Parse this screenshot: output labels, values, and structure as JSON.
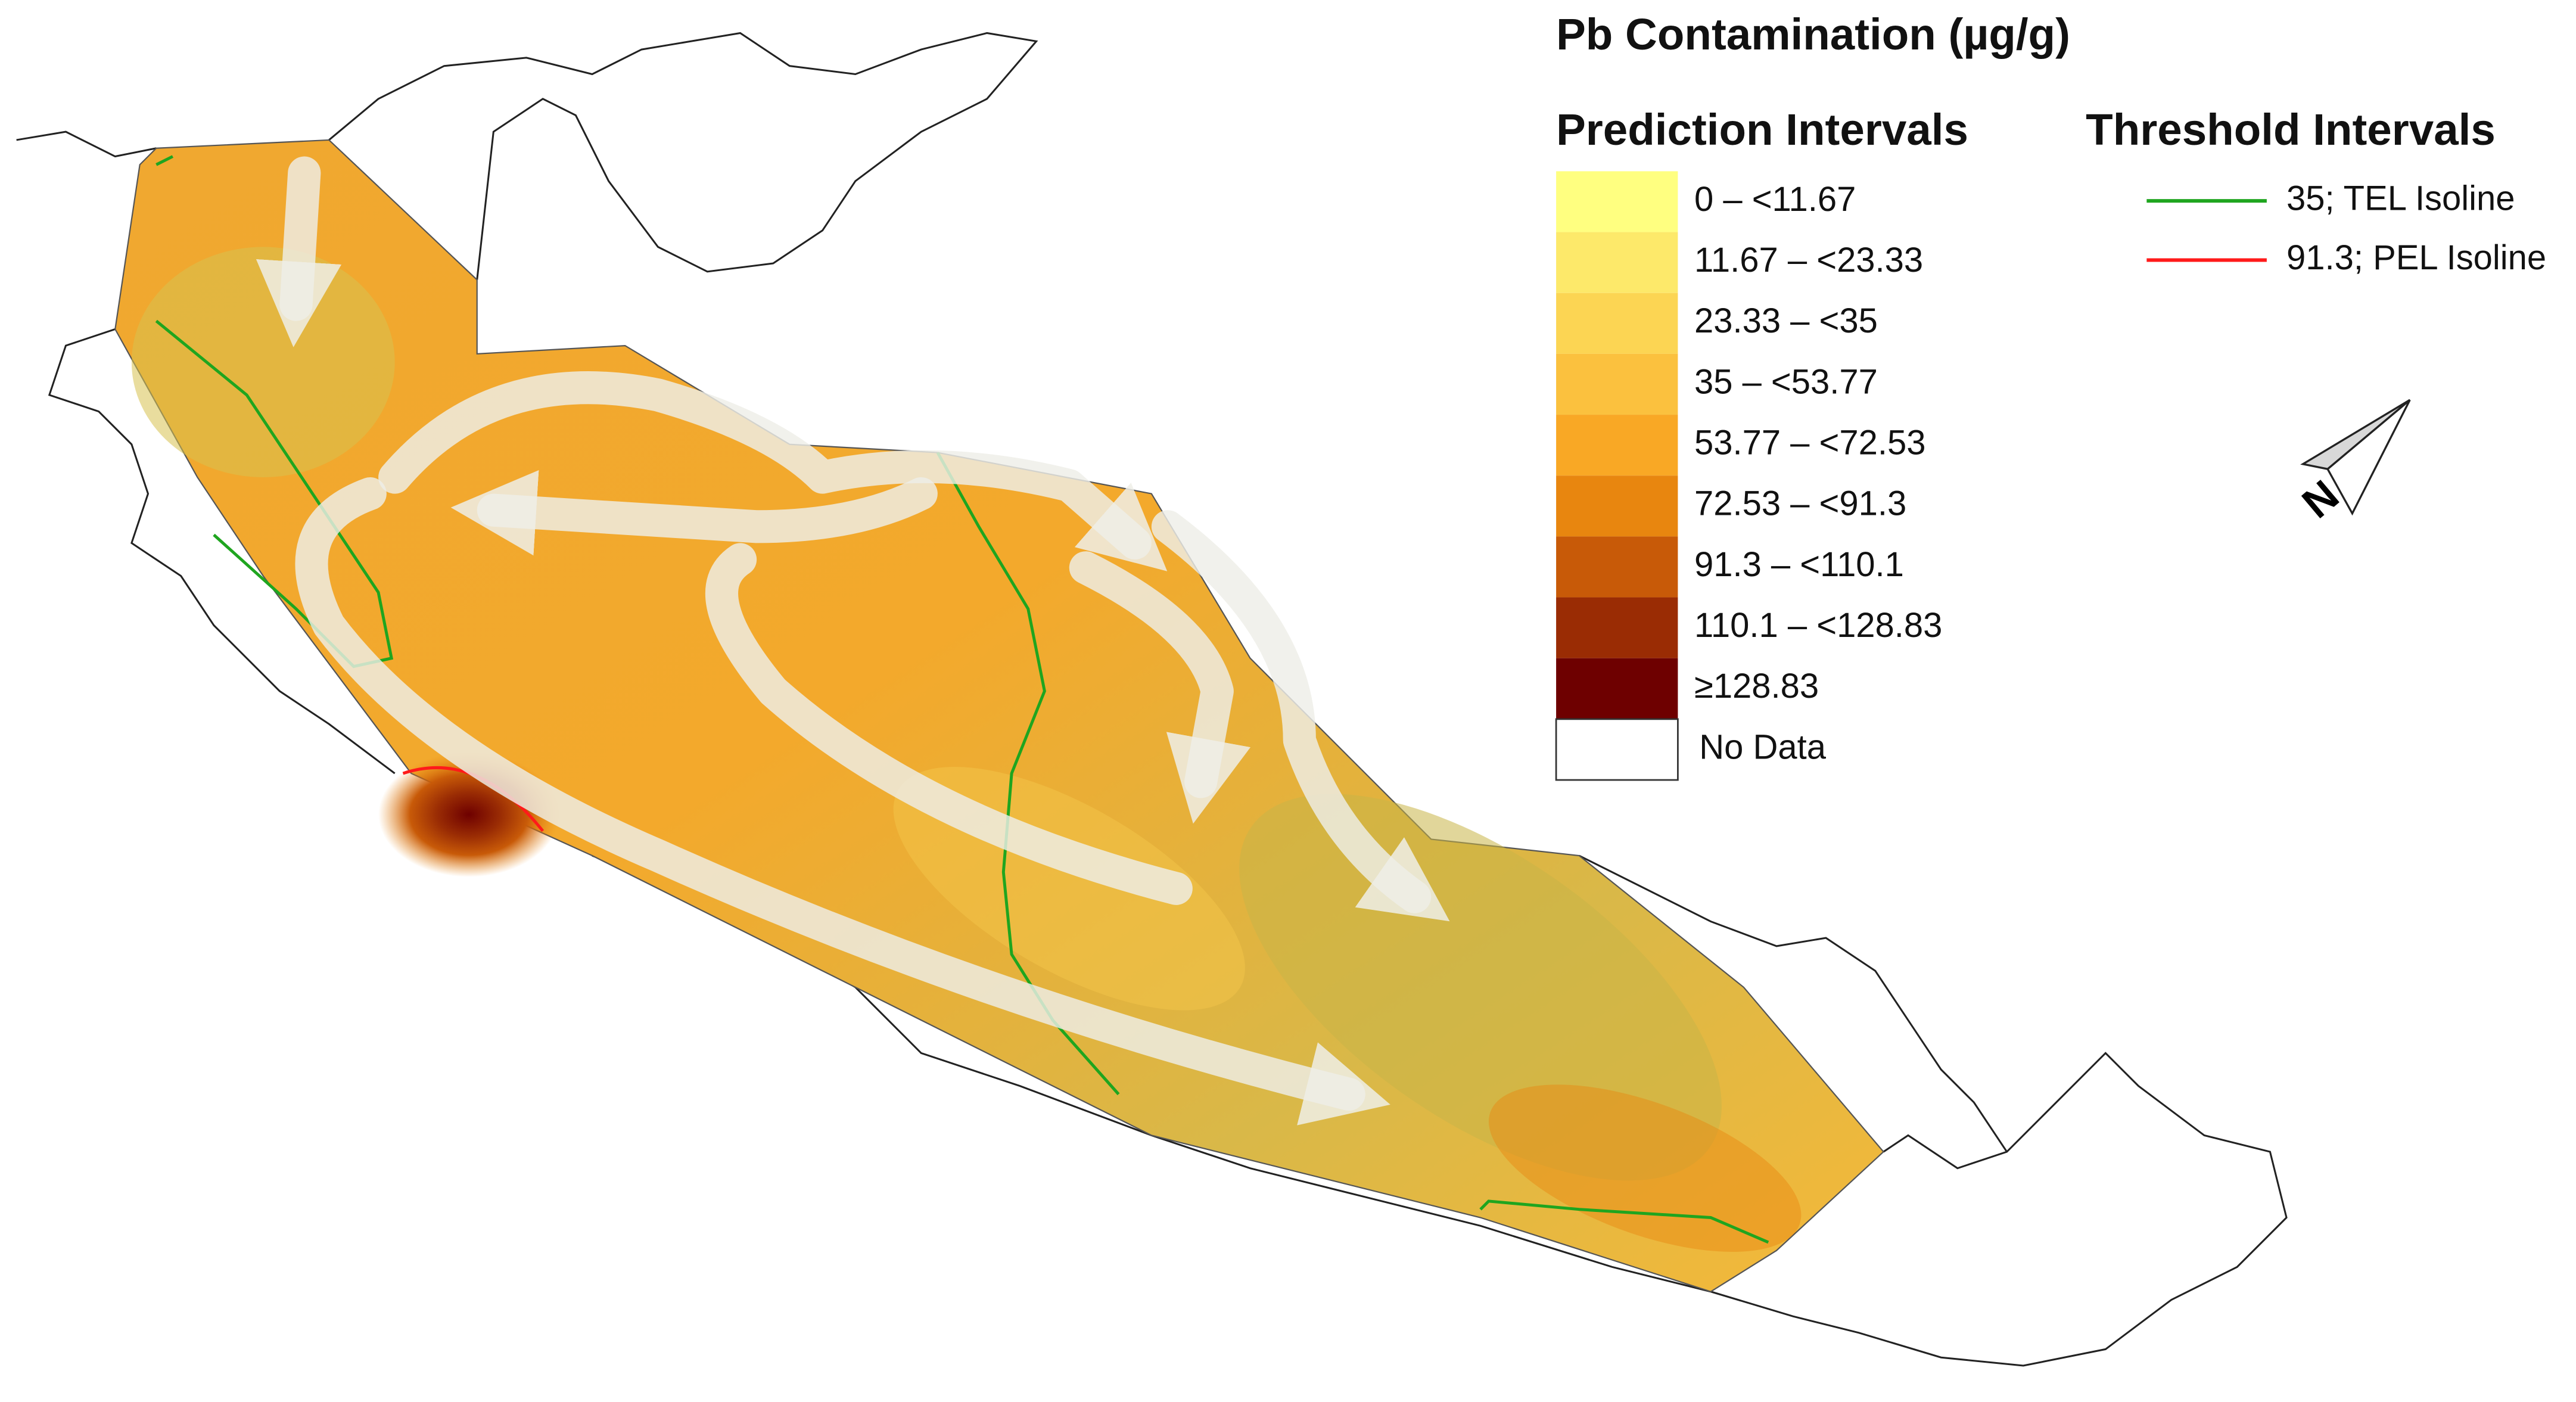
{
  "legend": {
    "title": "Pb Contamination (µg/g)",
    "prediction_heading": "Prediction Intervals",
    "prediction_intervals": [
      {
        "label": "0 – <11.67",
        "color": "#ffff80"
      },
      {
        "label": "11.67 – <23.33",
        "color": "#fde96a"
      },
      {
        "label": "23.33 – <35",
        "color": "#fcd553"
      },
      {
        "label": "35 – <53.77",
        "color": "#fbc13e"
      },
      {
        "label": "53.77 – <72.53",
        "color": "#f9a825"
      },
      {
        "label": "72.53 – <91.3",
        "color": "#e8860f"
      },
      {
        "label": "91.3 – <110.1",
        "color": "#c85a08"
      },
      {
        "label": "110.1 – <128.83",
        "color": "#9a2c04"
      },
      {
        "label": "≥128.83",
        "color": "#6e0000"
      }
    ],
    "no_data": "No Data",
    "threshold_heading": "Threshold Intervals",
    "thresholds": [
      {
        "label": "35; TEL Isoline",
        "color": "#1fa51f"
      },
      {
        "label": "91.3; PEL Isoline",
        "color": "#ff1a1a"
      }
    ]
  },
  "north_arrow": "N"
}
